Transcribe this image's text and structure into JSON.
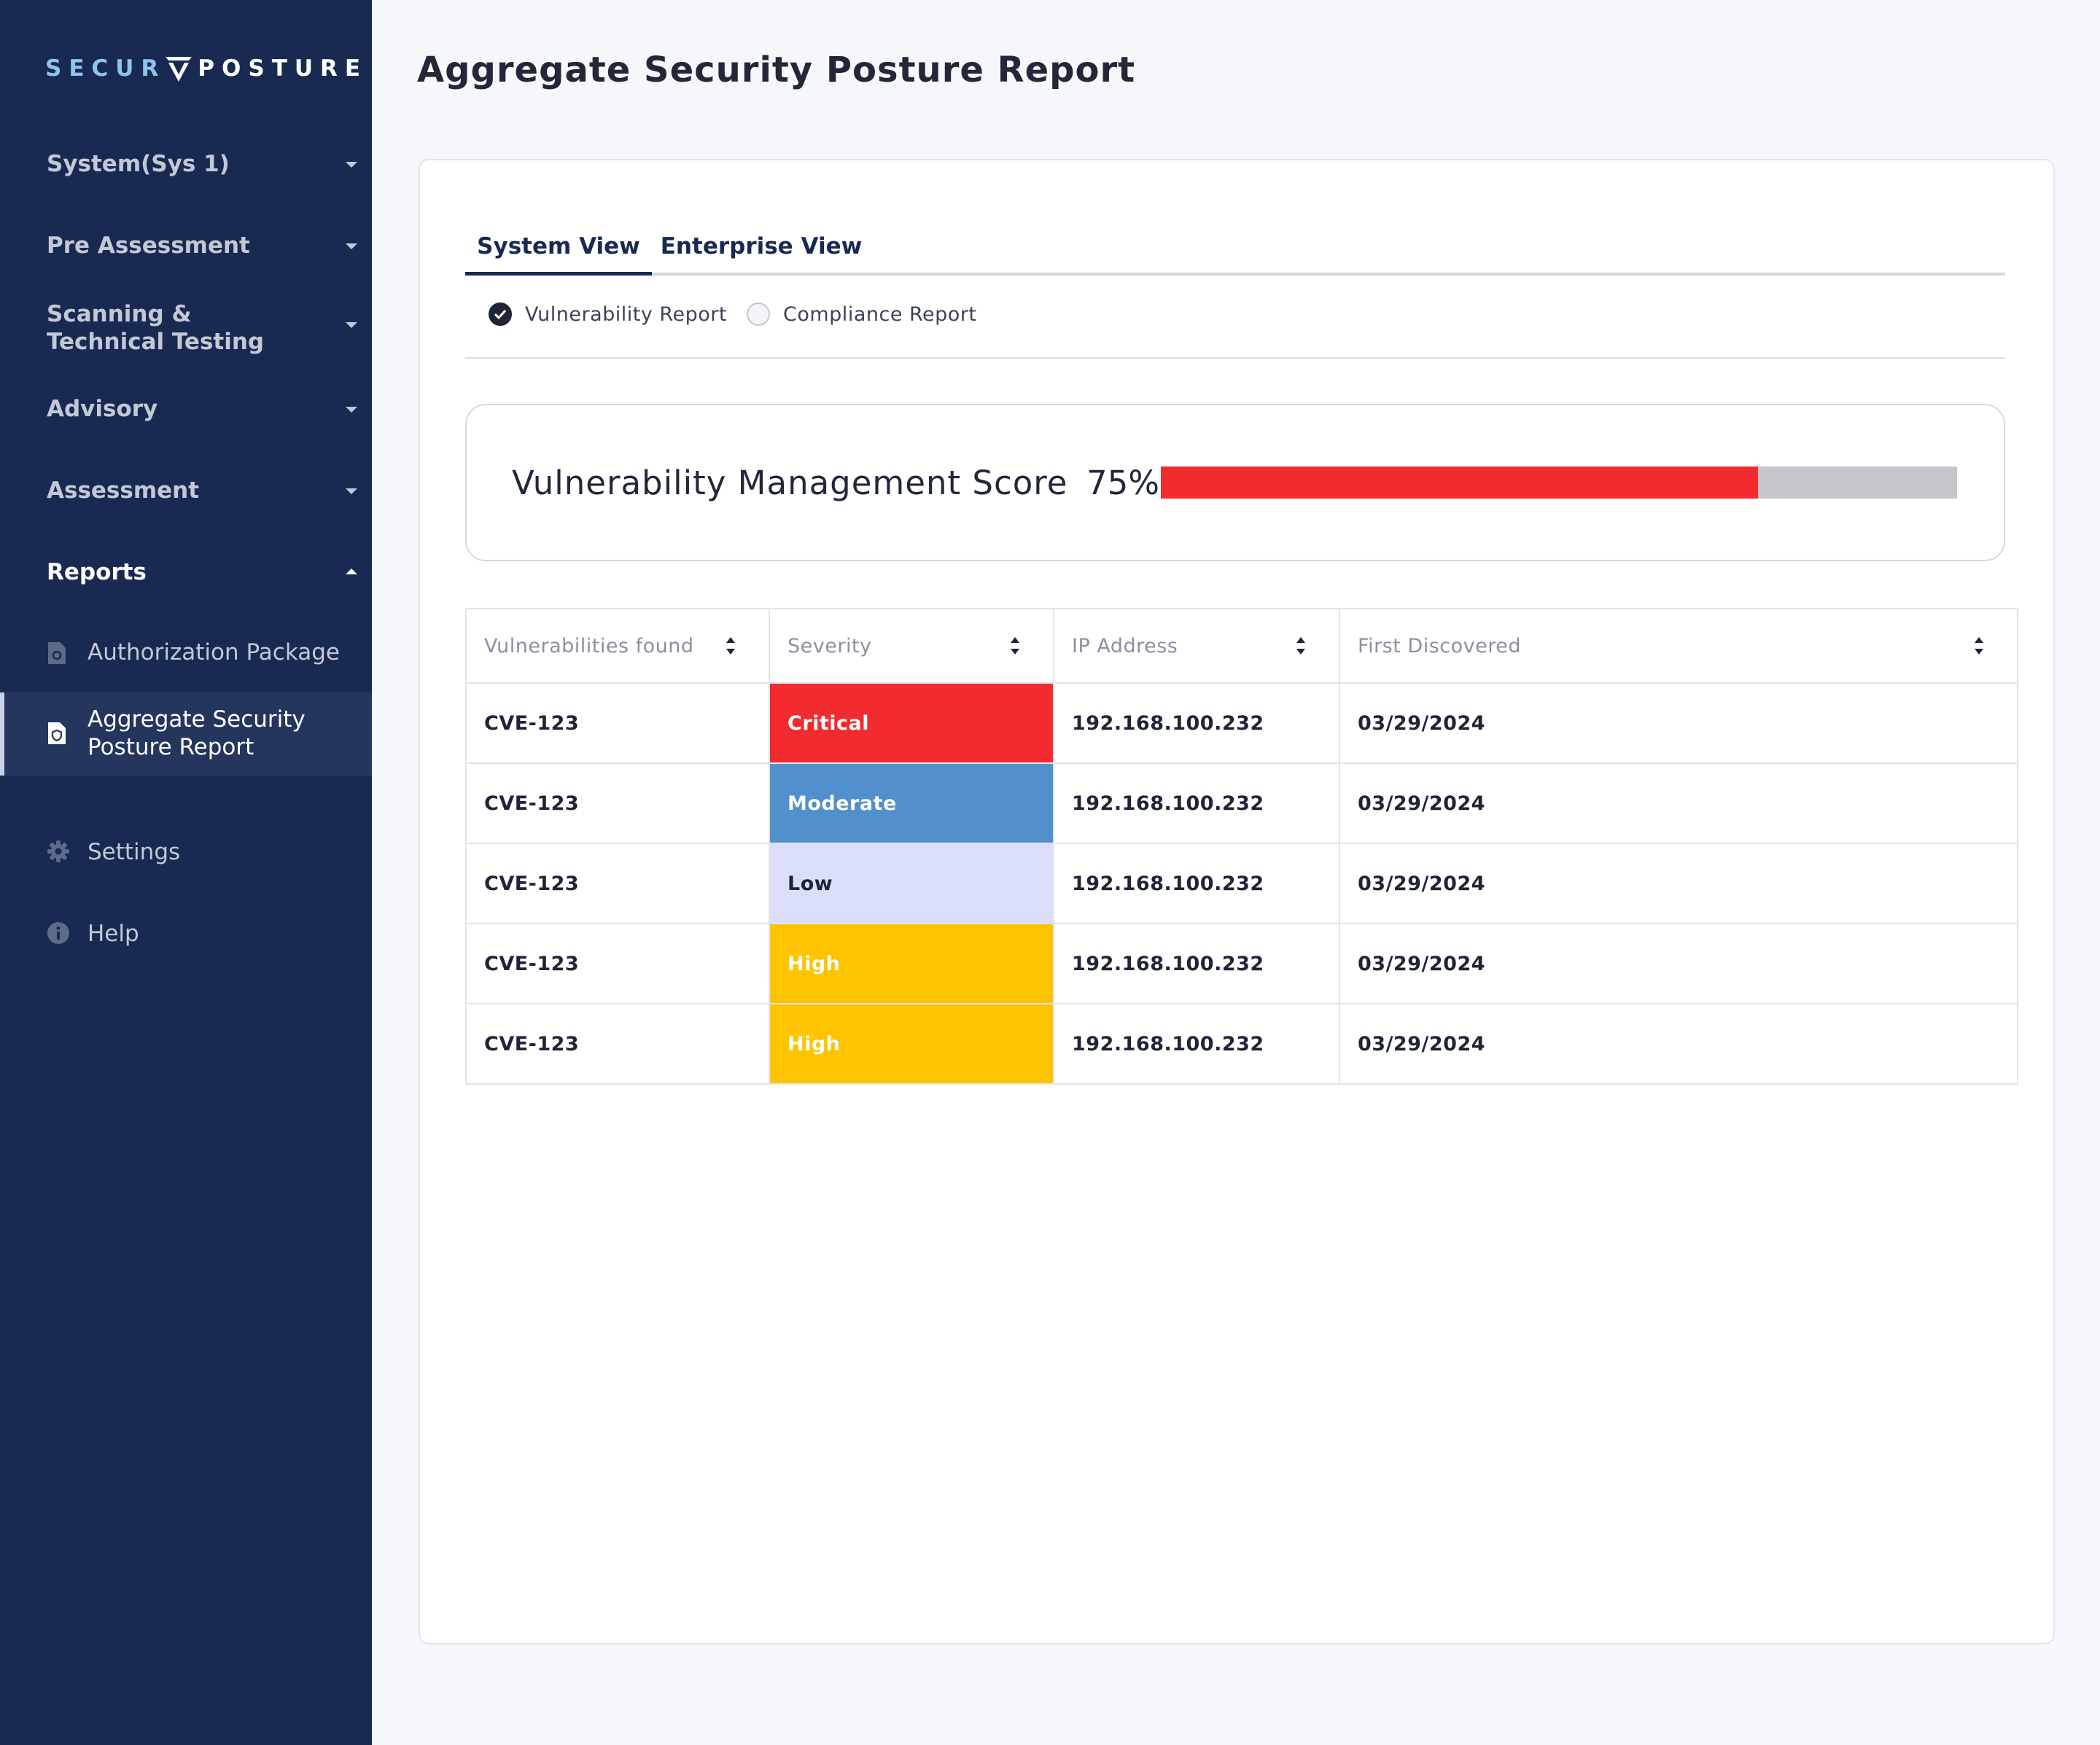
{
  "brand": {
    "part1": "SECUR",
    "part2": "POSTURE"
  },
  "page": {
    "title": "Aggregate Security Posture Report"
  },
  "sidebar": {
    "groups": [
      {
        "label": "System(Sys 1)"
      },
      {
        "label": "Pre Assessment"
      },
      {
        "label": "Scanning & Technical Testing"
      },
      {
        "label": "Advisory"
      },
      {
        "label": "Assessment"
      },
      {
        "label": "Reports"
      }
    ],
    "report_items": [
      {
        "label": "Authorization Package",
        "icon": "document-icon"
      },
      {
        "label": "Aggregate Security Posture Report",
        "icon": "document-shield-icon"
      }
    ],
    "bottom_items": [
      {
        "label": "Settings",
        "icon": "gear-icon"
      },
      {
        "label": "Help",
        "icon": "info-icon"
      }
    ]
  },
  "tabs": [
    {
      "label": "System View"
    },
    {
      "label": "Enterprise View"
    }
  ],
  "report_type": {
    "options": [
      {
        "label": "Vulnerability Report"
      },
      {
        "label": "Compliance Report"
      }
    ],
    "selected": "Vulnerability Report"
  },
  "score": {
    "label": "Vulnerability Management Score",
    "value_text": "75%",
    "value": 0.75,
    "fill_color": "#f22b2f"
  },
  "table": {
    "columns": [
      "Vulnerabilities found",
      "Severity",
      "IP Address",
      "First Discovered"
    ],
    "rows": [
      {
        "cve": "CVE-123",
        "severity": "Critical",
        "ip": "192.168.100.232",
        "date": "03/29/2024"
      },
      {
        "cve": "CVE-123",
        "severity": "Moderate",
        "ip": "192.168.100.232",
        "date": "03/29/2024"
      },
      {
        "cve": "CVE-123",
        "severity": "Low",
        "ip": "192.168.100.232",
        "date": "03/29/2024"
      },
      {
        "cve": "CVE-123",
        "severity": "High",
        "ip": "192.168.100.232",
        "date": "03/29/2024"
      },
      {
        "cve": "CVE-123",
        "severity": "High",
        "ip": "192.168.100.232",
        "date": "03/29/2024"
      }
    ]
  },
  "severity_colors": {
    "Critical": {
      "bg": "#f22b2f",
      "fg": "#ffffff"
    },
    "Moderate": {
      "bg": "#528fcd",
      "fg": "#ffffff"
    },
    "Low": {
      "bg": "#dadef9",
      "fg": "#1f2438"
    },
    "High": {
      "bg": "#ffc400",
      "fg": "#ffffff"
    }
  }
}
